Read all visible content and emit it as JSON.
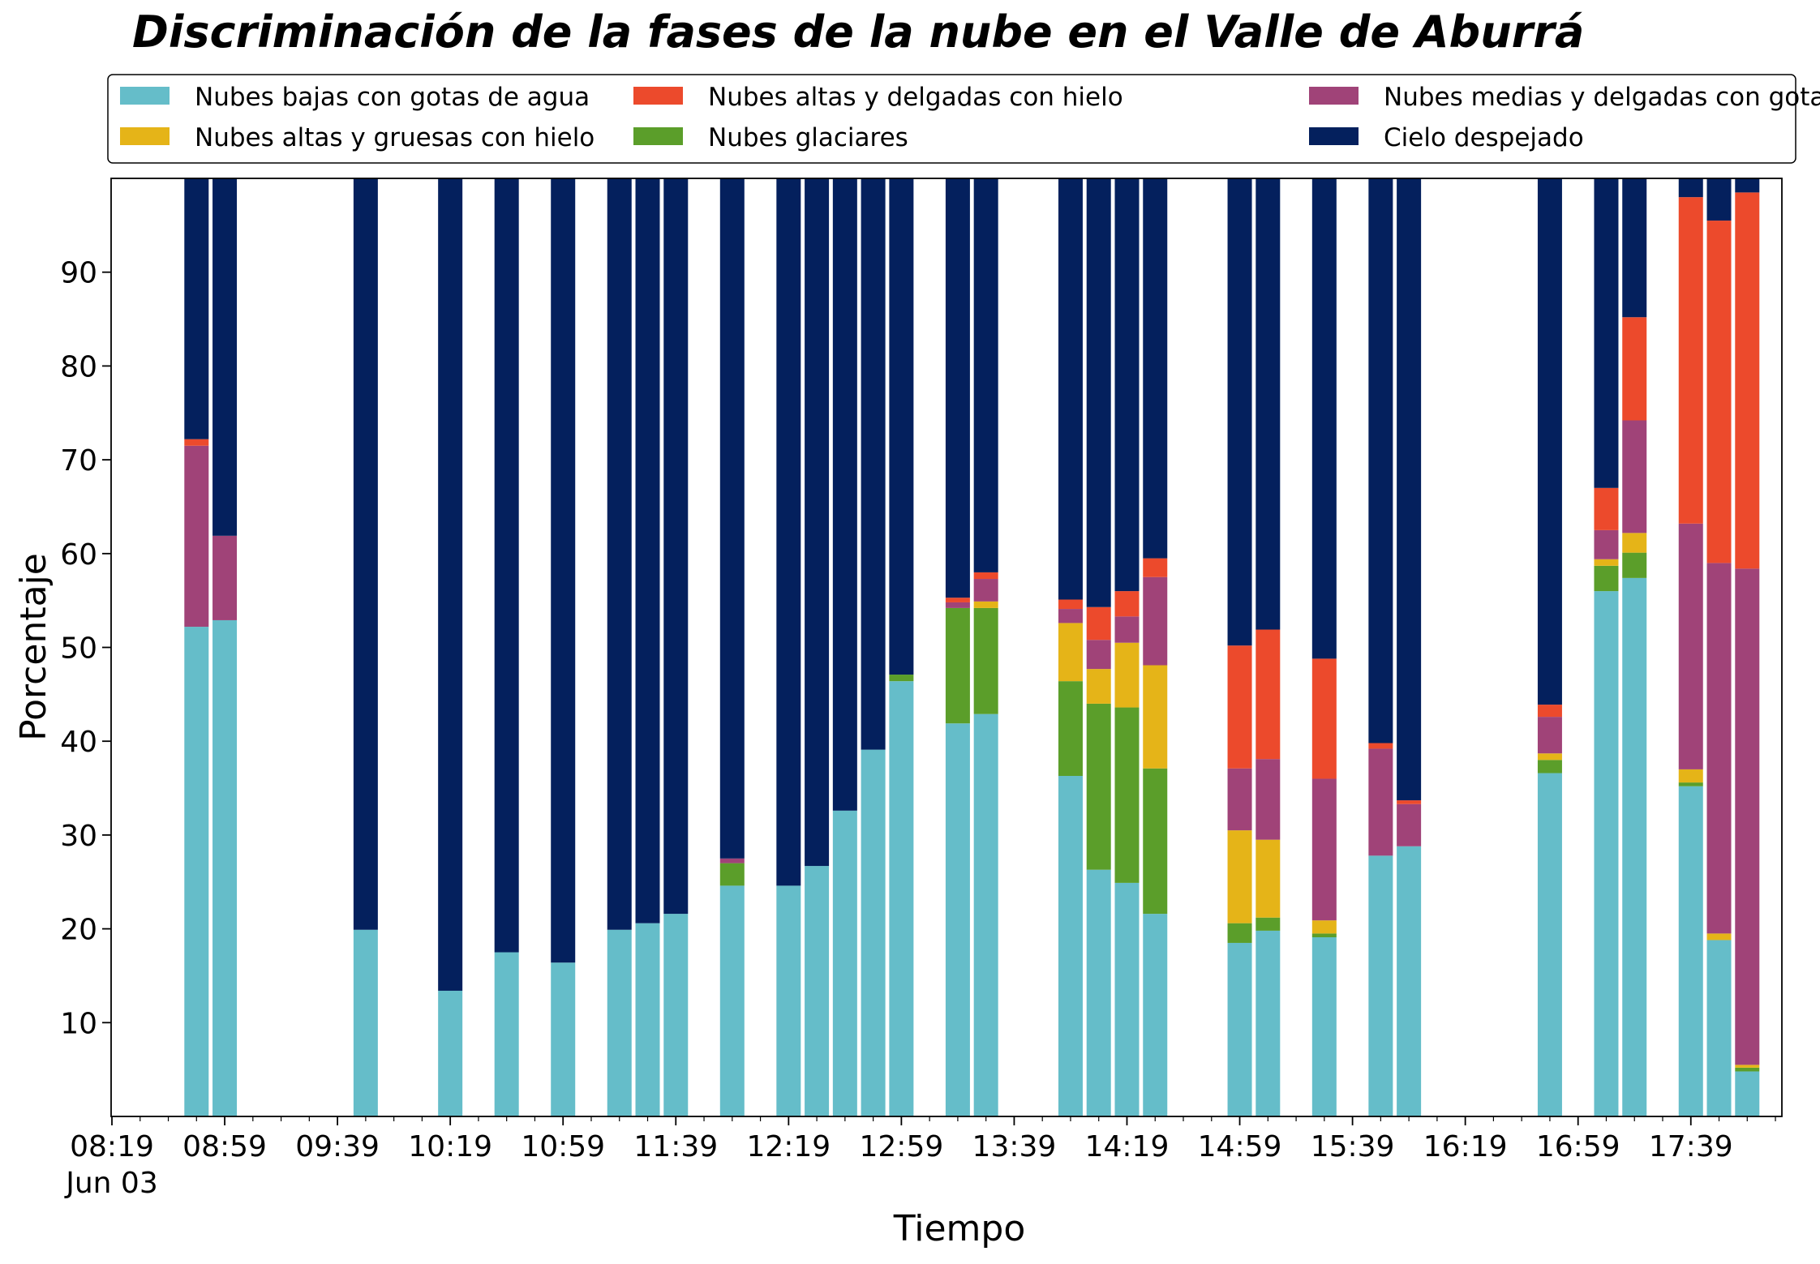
{
  "chart_data": {
    "type": "bar",
    "stacked": true,
    "title": "Discriminación de la fases de la nube en el Valle de Aburrá",
    "xlabel": "Tiempo",
    "ylabel": "Porcentaje",
    "ylim": [
      0,
      100
    ],
    "yticks": [
      10,
      20,
      30,
      40,
      50,
      60,
      70,
      80,
      90
    ],
    "xlim_minutes": [
      0,
      592
    ],
    "xticks": [
      {
        "label": "08:19",
        "sublabel": "Jun 03",
        "minute": 0
      },
      {
        "label": "08:59",
        "minute": 40
      },
      {
        "label": "09:39",
        "minute": 80
      },
      {
        "label": "10:19",
        "minute": 120
      },
      {
        "label": "10:59",
        "minute": 160
      },
      {
        "label": "11:39",
        "minute": 200
      },
      {
        "label": "12:19",
        "minute": 240
      },
      {
        "label": "12:59",
        "minute": 280
      },
      {
        "label": "13:39",
        "minute": 320
      },
      {
        "label": "14:19",
        "minute": 360
      },
      {
        "label": "14:59",
        "minute": 400
      },
      {
        "label": "15:39",
        "minute": 440
      },
      {
        "label": "16:19",
        "minute": 480
      },
      {
        "label": "16:59",
        "minute": 520
      },
      {
        "label": "17:39",
        "minute": 560
      }
    ],
    "legend_position": "top (above plot, 3 columns)",
    "series": [
      {
        "name": "Nubes bajas con gotas de agua",
        "color": "#65bdc9"
      },
      {
        "name": "Nubes glaciares",
        "color": "#5b9e2a"
      },
      {
        "name": "Nubes altas y gruesas con hielo",
        "color": "#e5b418"
      },
      {
        "name": "Nubes medias y delgadas con gotas de agua",
        "color": "#a04378"
      },
      {
        "name": "Nubes altas y delgadas con hielo",
        "color": "#ec4a2c"
      },
      {
        "name": "Cielo despejado",
        "color": "#04205d"
      }
    ],
    "legend_order": [
      0,
      2,
      4,
      1,
      3,
      5
    ],
    "times": [
      "08:49",
      "08:59",
      "09:49",
      "10:19",
      "10:39",
      "10:59",
      "11:19",
      "11:29",
      "11:39",
      "11:59",
      "12:19",
      "12:29",
      "12:39",
      "12:49",
      "12:59",
      "13:19",
      "13:29",
      "13:59",
      "14:09",
      "14:19",
      "14:29",
      "14:59",
      "15:09",
      "15:29",
      "15:49",
      "15:59",
      "16:49",
      "17:09",
      "17:19",
      "17:39",
      "17:49",
      "17:59"
    ],
    "bars": [
      {
        "t": 30,
        "values": [
          52.2,
          0,
          0,
          19.3,
          0.7,
          27.8
        ]
      },
      {
        "t": 40,
        "values": [
          52.9,
          0,
          0,
          9.0,
          0,
          38.1
        ]
      },
      {
        "t": 90,
        "values": [
          19.9,
          0,
          0,
          0,
          0,
          80.1
        ]
      },
      {
        "t": 120,
        "values": [
          13.4,
          0,
          0,
          0,
          0,
          86.6
        ]
      },
      {
        "t": 140,
        "values": [
          17.5,
          0,
          0,
          0,
          0,
          82.5
        ]
      },
      {
        "t": 160,
        "values": [
          16.4,
          0,
          0,
          0,
          0,
          83.6
        ]
      },
      {
        "t": 180,
        "values": [
          19.9,
          0,
          0,
          0,
          0,
          80.1
        ]
      },
      {
        "t": 190,
        "values": [
          20.6,
          0,
          0,
          0,
          0,
          79.4
        ]
      },
      {
        "t": 200,
        "values": [
          21.6,
          0,
          0,
          0,
          0,
          78.4
        ]
      },
      {
        "t": 220,
        "values": [
          24.6,
          2.4,
          0,
          0.5,
          0,
          72.5
        ]
      },
      {
        "t": 240,
        "values": [
          24.6,
          0,
          0,
          0,
          0,
          75.4
        ]
      },
      {
        "t": 250,
        "values": [
          26.7,
          0,
          0,
          0,
          0,
          73.3
        ]
      },
      {
        "t": 260,
        "values": [
          32.6,
          0,
          0,
          0,
          0,
          67.4
        ]
      },
      {
        "t": 270,
        "values": [
          39.1,
          0,
          0,
          0,
          0,
          60.9
        ]
      },
      {
        "t": 280,
        "values": [
          46.4,
          0.7,
          0,
          0,
          0,
          52.9
        ]
      },
      {
        "t": 300,
        "values": [
          41.9,
          12.3,
          0,
          0.6,
          0.5,
          44.7
        ]
      },
      {
        "t": 310,
        "values": [
          42.9,
          11.3,
          0.7,
          2.4,
          0.7,
          42.0
        ]
      },
      {
        "t": 340,
        "values": [
          36.3,
          10.1,
          6.2,
          1.5,
          1.0,
          44.9
        ]
      },
      {
        "t": 350,
        "values": [
          26.3,
          17.7,
          3.7,
          3.1,
          3.5,
          45.7
        ]
      },
      {
        "t": 360,
        "values": [
          24.9,
          18.7,
          6.9,
          2.8,
          2.7,
          44.0
        ]
      },
      {
        "t": 370,
        "values": [
          21.6,
          15.5,
          11.0,
          9.4,
          2.0,
          40.5
        ]
      },
      {
        "t": 400,
        "values": [
          18.5,
          2.1,
          9.9,
          6.6,
          13.1,
          49.8
        ]
      },
      {
        "t": 410,
        "values": [
          19.8,
          1.4,
          8.3,
          8.6,
          13.8,
          48.1
        ]
      },
      {
        "t": 430,
        "values": [
          19.1,
          0.4,
          1.4,
          15.1,
          12.8,
          51.2
        ]
      },
      {
        "t": 450,
        "values": [
          27.8,
          0,
          0,
          11.4,
          0.6,
          60.2
        ]
      },
      {
        "t": 460,
        "values": [
          28.8,
          0,
          0,
          4.5,
          0.4,
          66.3
        ]
      },
      {
        "t": 510,
        "values": [
          36.6,
          1.4,
          0.7,
          3.9,
          1.3,
          56.1
        ]
      },
      {
        "t": 530,
        "values": [
          56.0,
          2.7,
          0.7,
          3.1,
          4.5,
          33.0
        ]
      },
      {
        "t": 540,
        "values": [
          57.4,
          2.7,
          2.1,
          12.0,
          11.0,
          14.8
        ]
      },
      {
        "t": 560,
        "values": [
          35.2,
          0.4,
          1.4,
          26.2,
          34.8,
          2.0
        ]
      },
      {
        "t": 570,
        "values": [
          18.8,
          0,
          0.7,
          39.5,
          36.5,
          4.5
        ]
      },
      {
        "t": 580,
        "values": [
          4.8,
          0.4,
          0.3,
          52.9,
          40.1,
          1.5
        ]
      }
    ]
  }
}
